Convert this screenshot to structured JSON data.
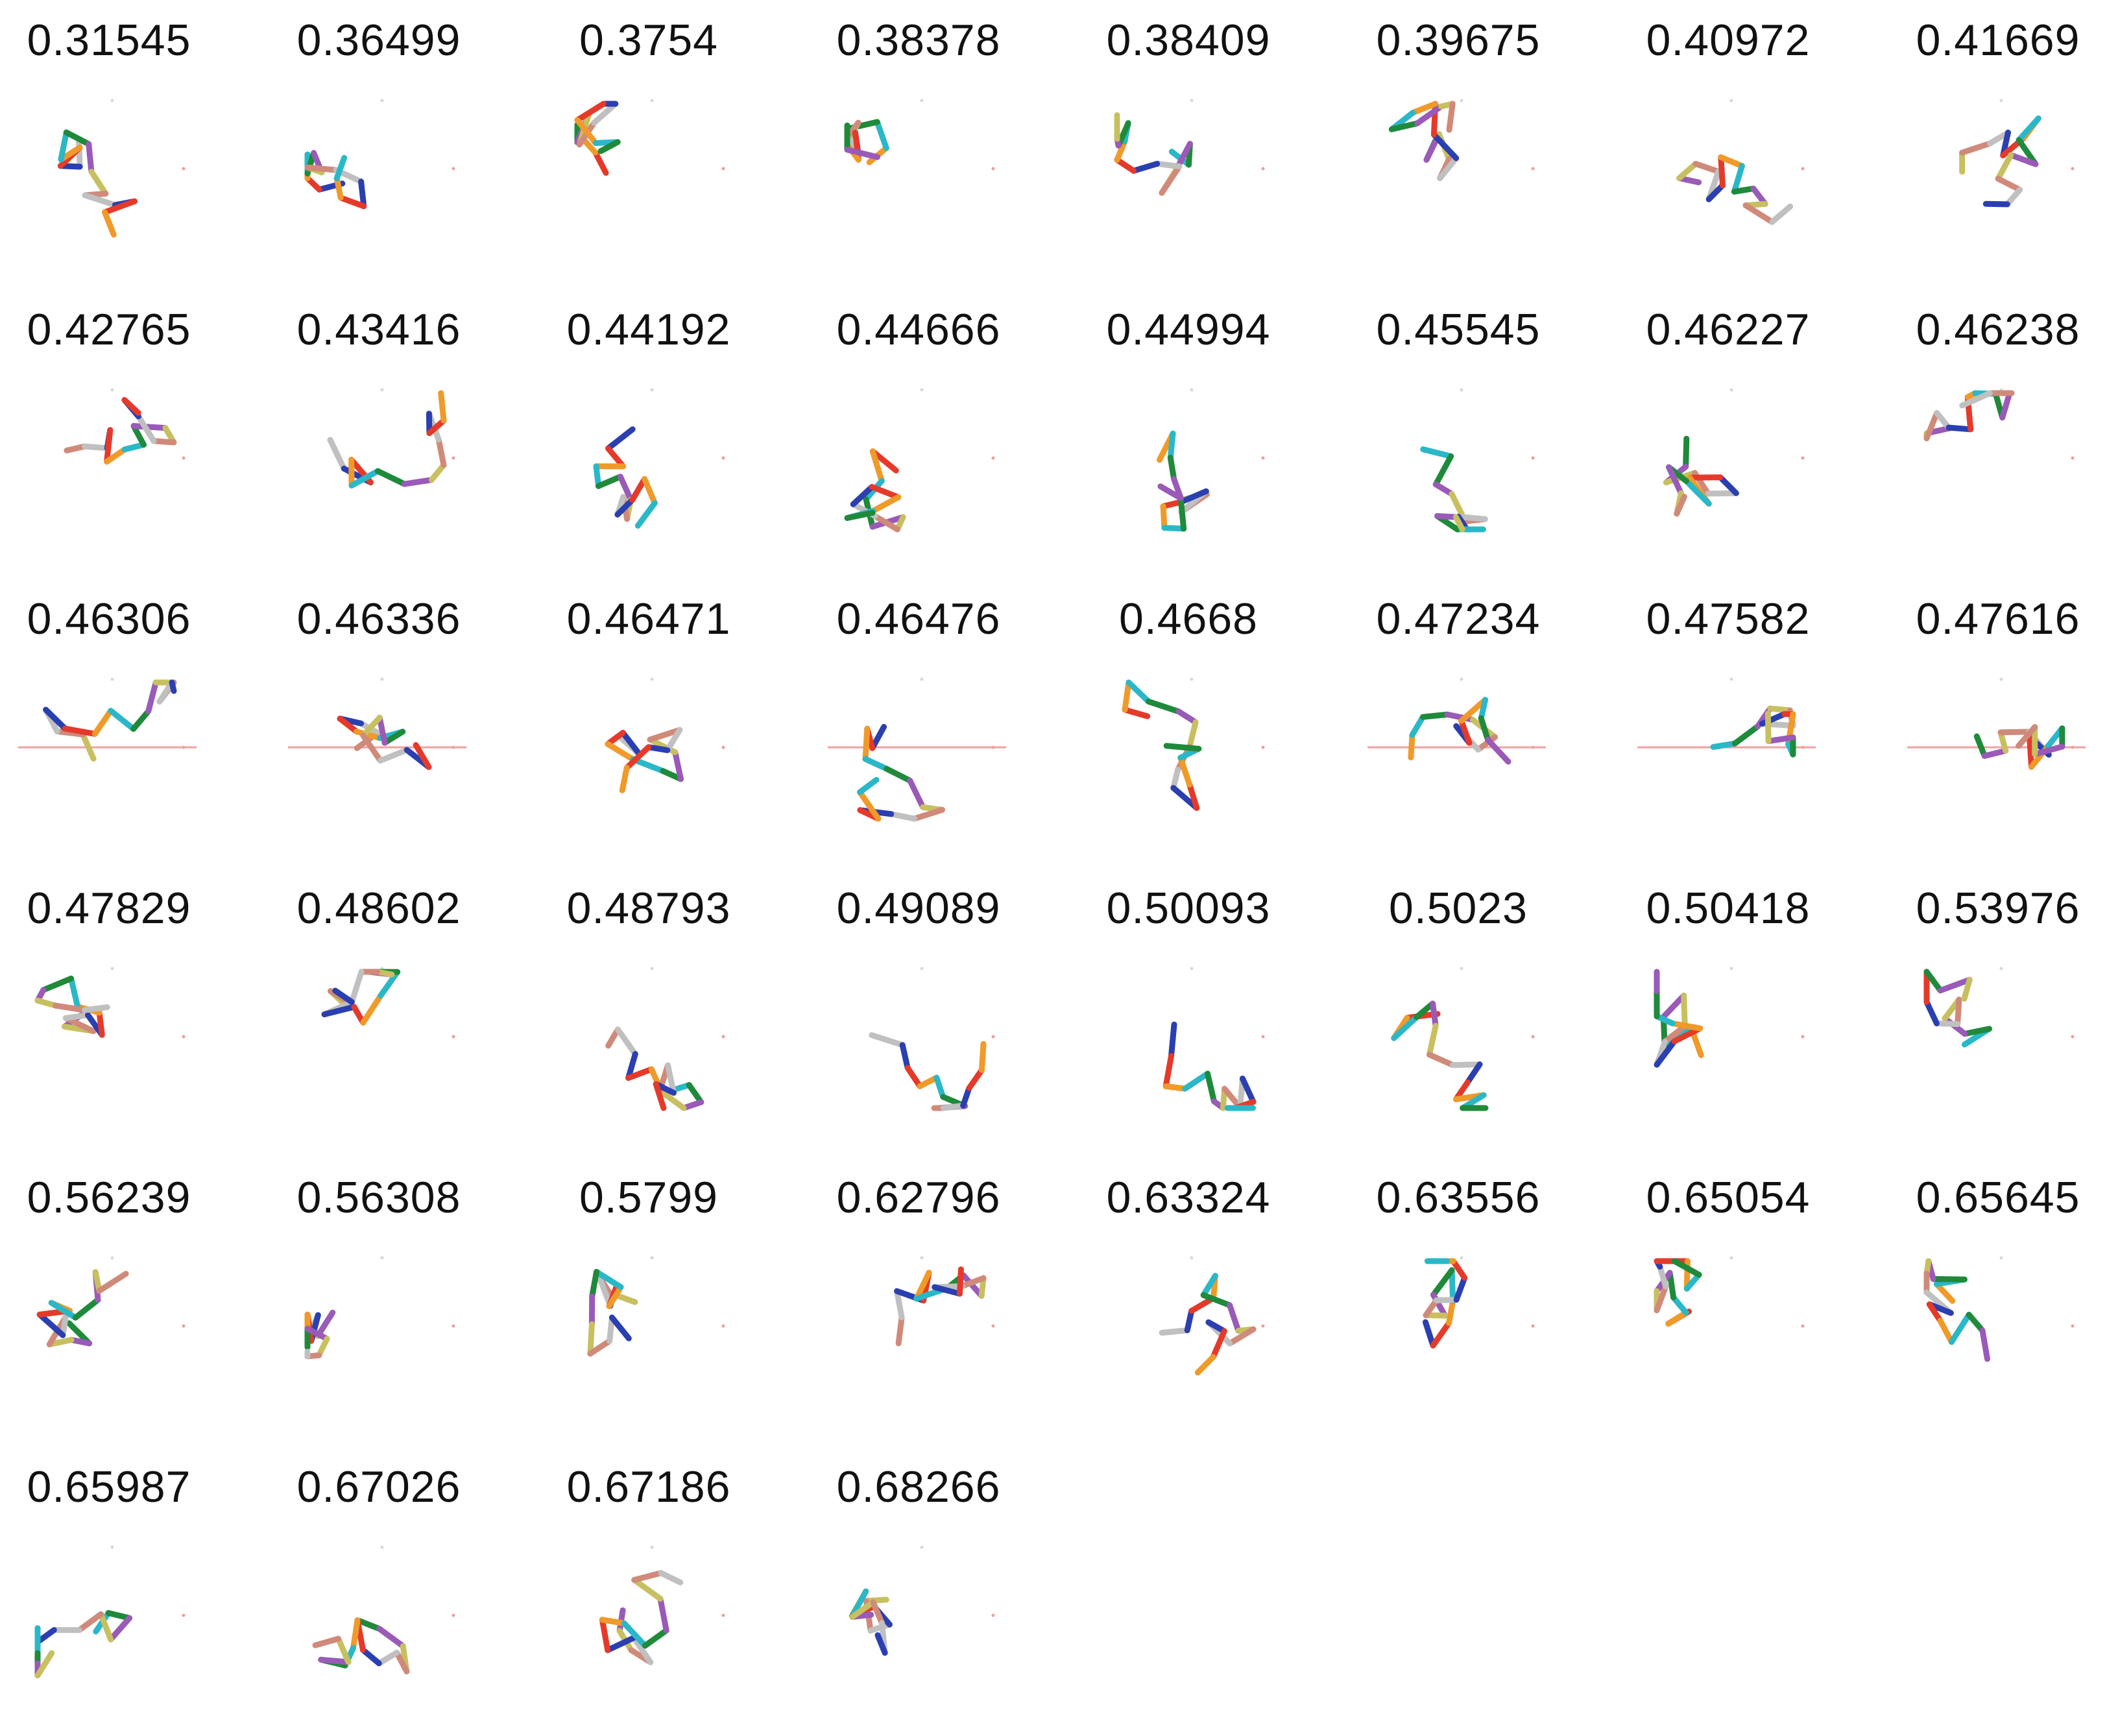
{
  "scores": [
    "0.31545",
    "0.36499",
    "0.3754",
    "0.38378",
    "0.38409",
    "0.39675",
    "0.40972",
    "0.41669",
    "0.42765",
    "0.43416",
    "0.44192",
    "0.44666",
    "0.44994",
    "0.45545",
    "0.46227",
    "0.46238",
    "0.46306",
    "0.46336",
    "0.46471",
    "0.46476",
    "0.4668",
    "0.47234",
    "0.47582",
    "0.47616",
    "0.47829",
    "0.48602",
    "0.48793",
    "0.49089",
    "0.50093",
    "0.5023",
    "0.50418",
    "0.53976",
    "0.56239",
    "0.56308",
    "0.5799",
    "0.62796",
    "0.63324",
    "0.63556",
    "0.65054",
    "0.65645",
    "0.65987",
    "0.67026",
    "0.67186",
    "0.68266"
  ],
  "palette": [
    "#c0c0c0",
    "#2a3fb0",
    "#e53a2a",
    "#f09a2a",
    "#2ab8c8",
    "#1f8a3a",
    "#9a5ab8",
    "#c8c060",
    "#d08a7a"
  ]
}
